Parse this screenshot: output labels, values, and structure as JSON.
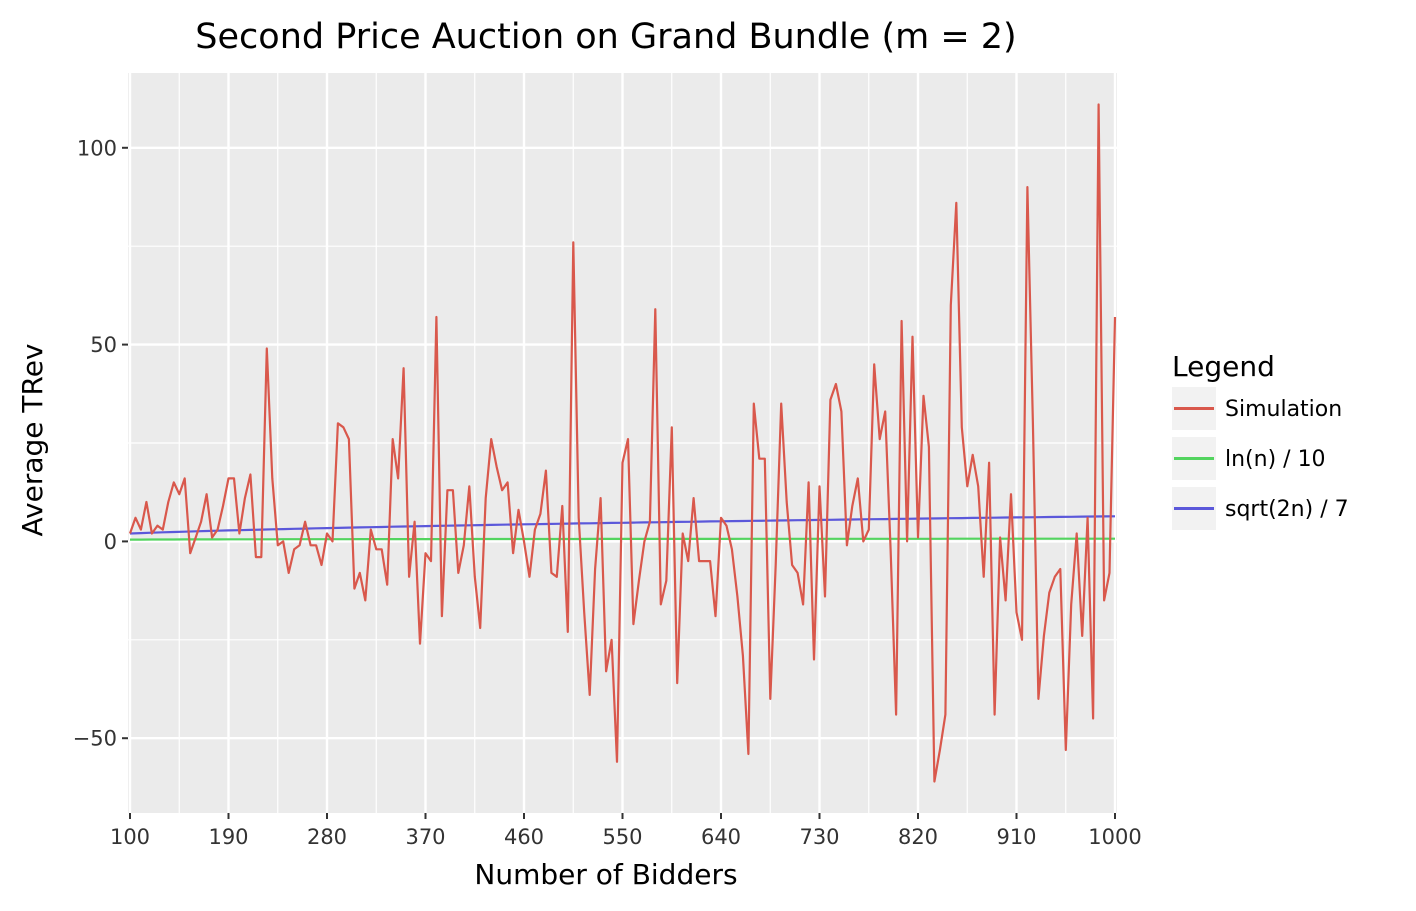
{
  "chart_data": {
    "type": "line",
    "title": "Second Price Auction on Grand Bundle (m = 2)",
    "xlabel": "Number of Bidders",
    "ylabel": "Average TRev",
    "xlim": [
      100,
      1000
    ],
    "ylim": [
      -69,
      119
    ],
    "x_ticks": [
      100,
      190,
      280,
      370,
      460,
      550,
      640,
      730,
      820,
      910,
      1000
    ],
    "y_ticks": [
      -50,
      0,
      50,
      100
    ],
    "y_tick_labels": [
      "−50",
      "0",
      "50",
      "100"
    ],
    "grid": true,
    "legend": {
      "title": "Legend",
      "position": "right",
      "entries": [
        "Simulation",
        "ln(n) / 10",
        "sqrt(2n) / 7"
      ]
    },
    "series": [
      {
        "name": "Simulation",
        "color": "#d9584c",
        "x": [
          100,
          105,
          110,
          115,
          120,
          125,
          130,
          135,
          140,
          145,
          150,
          155,
          160,
          165,
          170,
          175,
          180,
          185,
          190,
          195,
          200,
          205,
          210,
          215,
          220,
          225,
          230,
          235,
          240,
          245,
          250,
          255,
          260,
          265,
          270,
          275,
          280,
          285,
          290,
          295,
          300,
          305,
          310,
          315,
          320,
          325,
          330,
          335,
          340,
          345,
          350,
          355,
          360,
          365,
          370,
          375,
          380,
          385,
          390,
          395,
          400,
          405,
          410,
          415,
          420,
          425,
          430,
          435,
          440,
          445,
          450,
          455,
          460,
          465,
          470,
          475,
          480,
          485,
          490,
          495,
          500,
          505,
          510,
          515,
          520,
          525,
          530,
          535,
          540,
          545,
          550,
          555,
          560,
          565,
          570,
          575,
          580,
          585,
          590,
          595,
          600,
          605,
          610,
          615,
          620,
          625,
          630,
          635,
          640,
          645,
          650,
          655,
          660,
          665,
          670,
          675,
          680,
          685,
          690,
          695,
          700,
          705,
          710,
          715,
          720,
          725,
          730,
          735,
          740,
          745,
          750,
          755,
          760,
          765,
          770,
          775,
          780,
          785,
          790,
          795,
          800,
          805,
          810,
          815,
          820,
          825,
          830,
          835,
          840,
          845,
          850,
          855,
          860,
          865,
          870,
          875,
          880,
          885,
          890,
          895,
          900,
          905,
          910,
          915,
          920,
          925,
          930,
          935,
          940,
          945,
          950,
          955,
          960,
          965,
          970,
          975,
          980,
          985,
          990,
          995,
          1000
        ],
        "y": [
          2,
          6,
          3,
          10,
          2,
          4,
          3,
          10,
          15,
          12,
          16,
          -3,
          1,
          5,
          12,
          1,
          3,
          9,
          16,
          16,
          2,
          11,
          17,
          -4,
          -4,
          49,
          16,
          -1,
          0,
          -8,
          -2,
          -1,
          5,
          -1,
          -1,
          -6,
          2,
          0,
          30,
          29,
          26,
          -12,
          -8,
          -15,
          3,
          -2,
          -2,
          -11,
          26,
          16,
          44,
          -9,
          5,
          -26,
          -3,
          -5,
          57,
          -19,
          13,
          13,
          -8,
          -1,
          14,
          -9,
          -22,
          11,
          26,
          19,
          13,
          15,
          -3,
          8,
          0,
          -9,
          3,
          7,
          18,
          -8,
          -9,
          9,
          -23,
          76,
          6,
          -18,
          -39,
          -7,
          11,
          -33,
          -25,
          -56,
          20,
          26,
          -21,
          -10,
          0,
          5,
          59,
          -16,
          -10,
          29,
          -36,
          2,
          -5,
          11,
          -5,
          -5,
          -5,
          -19,
          6,
          4,
          -2,
          -14,
          -29,
          -54,
          35,
          21,
          21,
          -40,
          -6,
          35,
          10,
          -6,
          -8,
          -16,
          15,
          -30,
          14,
          -14,
          36,
          40,
          33,
          -1,
          9,
          16,
          0,
          3,
          45,
          26,
          33,
          -2,
          -44,
          56,
          0,
          52,
          1,
          37,
          24,
          -61,
          -53,
          -44,
          60,
          86,
          29,
          14,
          22,
          14,
          -9,
          20,
          -44,
          1,
          -15,
          12,
          -18,
          -25,
          90,
          30,
          -40,
          -24,
          -13,
          -9,
          -7,
          -53,
          -16,
          2,
          -24,
          6,
          -45,
          111,
          -15,
          -8,
          57
        ]
      },
      {
        "name": "ln(n) / 10",
        "color": "#53d45f",
        "fn": "ln"
      },
      {
        "name": "sqrt(2n) / 7",
        "color": "#5b58da",
        "fn": "sqrt2"
      }
    ]
  }
}
